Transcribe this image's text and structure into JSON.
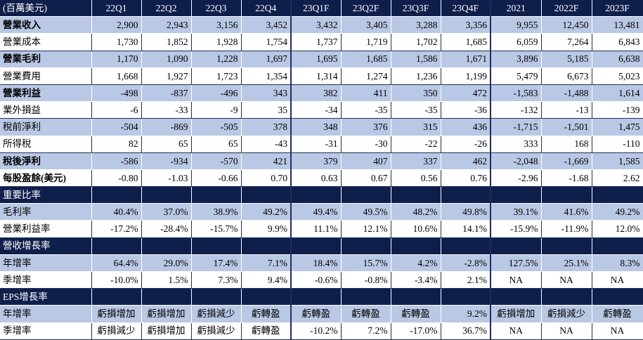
{
  "header": {
    "unit_label": "(百萬美元)",
    "columns": [
      "22Q1",
      "22Q2",
      "22Q3",
      "22Q4",
      "23Q1F",
      "23Q2F",
      "23Q3F",
      "23Q4F",
      "2021",
      "2022F",
      "2023F"
    ]
  },
  "income": [
    {
      "label": "營業收入",
      "values": [
        "2,900",
        "2,943",
        "3,156",
        "3,452",
        "3,432",
        "3,405",
        "3,288",
        "3,356",
        "9,955",
        "12,450",
        "13,481"
      ]
    },
    {
      "label": "營業成本",
      "values": [
        "1,730",
        "1,852",
        "1,928",
        "1,754",
        "1,737",
        "1,719",
        "1,702",
        "1,685",
        "6,059",
        "7,264",
        "6,843"
      ]
    },
    {
      "label": "營業毛利",
      "values": [
        "1,170",
        "1,090",
        "1,228",
        "1,697",
        "1,695",
        "1,685",
        "1,586",
        "1,671",
        "3,896",
        "5,185",
        "6,638"
      ]
    },
    {
      "label": "營業費用",
      "values": [
        "1,668",
        "1,927",
        "1,723",
        "1,354",
        "1,314",
        "1,274",
        "1,236",
        "1,199",
        "5,479",
        "6,673",
        "5,023"
      ]
    },
    {
      "label": "營業利益",
      "values": [
        "-498",
        "-837",
        "-496",
        "343",
        "382",
        "411",
        "350",
        "472",
        "-1,583",
        "-1,488",
        "1,614"
      ]
    },
    {
      "label": "業外損益",
      "values": [
        "-6",
        "-33",
        "-9",
        "35",
        "-34",
        "-35",
        "-35",
        "-36",
        "-132",
        "-13",
        "-139"
      ]
    },
    {
      "label": "稅前淨利",
      "values": [
        "-504",
        "-869",
        "-505",
        "378",
        "348",
        "376",
        "315",
        "436",
        "-1,715",
        "-1,501",
        "1,475"
      ]
    },
    {
      "label": "所得稅",
      "values": [
        "82",
        "65",
        "65",
        "-43",
        "-31",
        "-30",
        "-22",
        "-26",
        "333",
        "168",
        "-110"
      ]
    },
    {
      "label": "稅後淨利",
      "values": [
        "-586",
        "-934",
        "-570",
        "421",
        "379",
        "407",
        "337",
        "462",
        "-2,048",
        "-1,669",
        "1,585"
      ]
    },
    {
      "label": "每股盈餘(美元)",
      "values": [
        "-0.80",
        "-1.03",
        "-0.66",
        "0.70",
        "0.63",
        "0.67",
        "0.56",
        "0.76",
        "-2.96",
        "-1.68",
        "2.62"
      ]
    }
  ],
  "ratios": {
    "title": "重要比率",
    "rows": [
      {
        "label": "毛利率",
        "values": [
          "40.4%",
          "37.0%",
          "38.9%",
          "49.2%",
          "49.4%",
          "49.5%",
          "48.2%",
          "49.8%",
          "39.1%",
          "41.6%",
          "49.2%"
        ]
      },
      {
        "label": "營業利益率",
        "values": [
          "-17.2%",
          "-28.4%",
          "-15.7%",
          "9.9%",
          "11.1%",
          "12.1%",
          "10.6%",
          "14.1%",
          "-15.9%",
          "-11.9%",
          "12.0%"
        ]
      }
    ]
  },
  "revenue_growth": {
    "title": "營收增長率",
    "rows": [
      {
        "label": "年增率",
        "values": [
          "64.4%",
          "29.0%",
          "17.4%",
          "7.1%",
          "18.4%",
          "15.7%",
          "4.2%",
          "-2.8%",
          "127.5%",
          "25.1%",
          "8.3%"
        ]
      },
      {
        "label": "季增率",
        "values": [
          "-10.0%",
          "1.5%",
          "7.3%",
          "9.4%",
          "-0.6%",
          "-0.8%",
          "-3.4%",
          "2.1%",
          "NA",
          "NA",
          "NA"
        ]
      }
    ]
  },
  "eps_growth": {
    "title": "EPS增長率",
    "rows": [
      {
        "label": "年增率",
        "values": [
          "虧損增加",
          "虧損增加",
          "虧損減少",
          "虧轉盈",
          "虧轉盈",
          "虧轉盈",
          "虧轉盈",
          "9.2%",
          "虧損增加",
          "虧損減少",
          "虧轉盈"
        ]
      },
      {
        "label": "季增率",
        "values": [
          "虧損減少",
          "虧損增加",
          "虧損減少",
          "虧轉盈",
          "-10.2%",
          "7.2%",
          "-17.0%",
          "36.7%",
          "NA",
          "NA",
          "NA"
        ]
      }
    ]
  }
}
